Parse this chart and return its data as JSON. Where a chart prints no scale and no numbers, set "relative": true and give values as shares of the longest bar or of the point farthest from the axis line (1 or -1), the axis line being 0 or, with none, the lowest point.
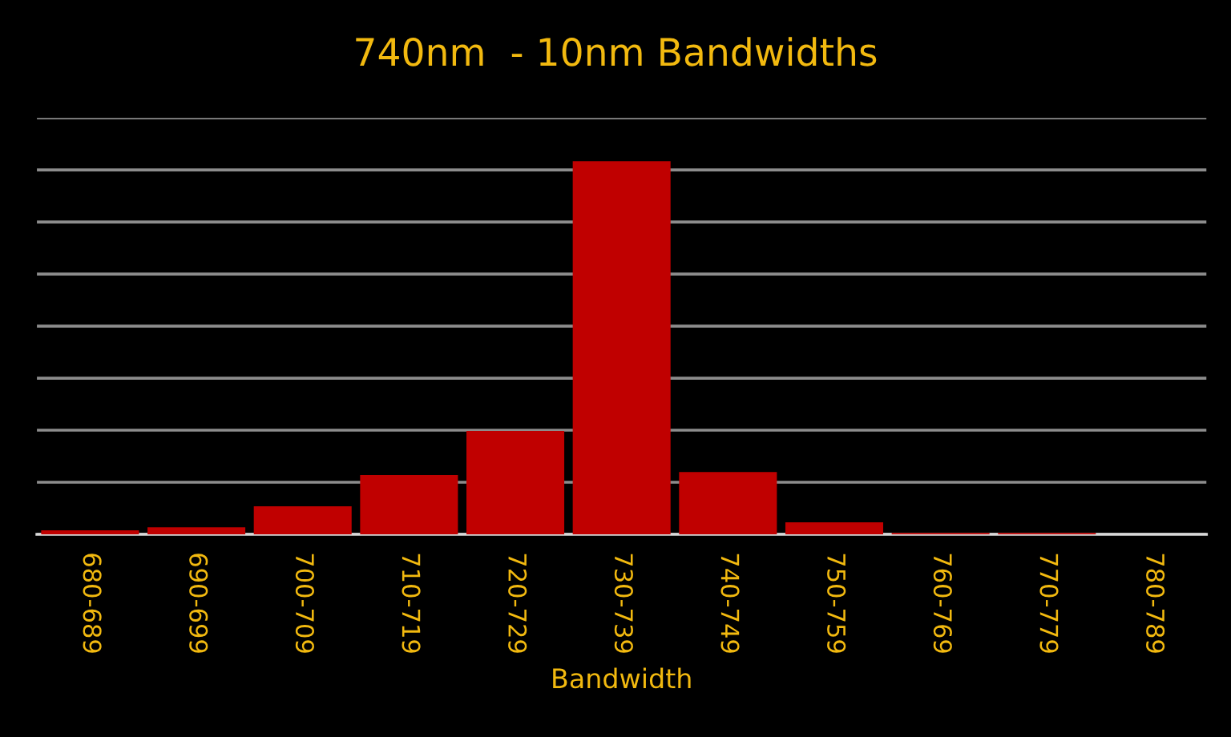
{
  "chart_data": {
    "type": "bar",
    "title": "740nm  - 10nm Bandwidths",
    "xlabel": "Bandwidth",
    "categories": [
      "680-689",
      "690-699",
      "700-709",
      "710-719",
      "720-729",
      "730-739",
      "740-749",
      "750-759",
      "760-769",
      "770-779",
      "780-789"
    ],
    "values": [
      0.011,
      0.019,
      0.075,
      0.159,
      0.277,
      1,
      0.167,
      0.032,
      0.004,
      0.004,
      0
    ],
    "color": "#c00000",
    "relative": true,
    "grid": "y"
  }
}
